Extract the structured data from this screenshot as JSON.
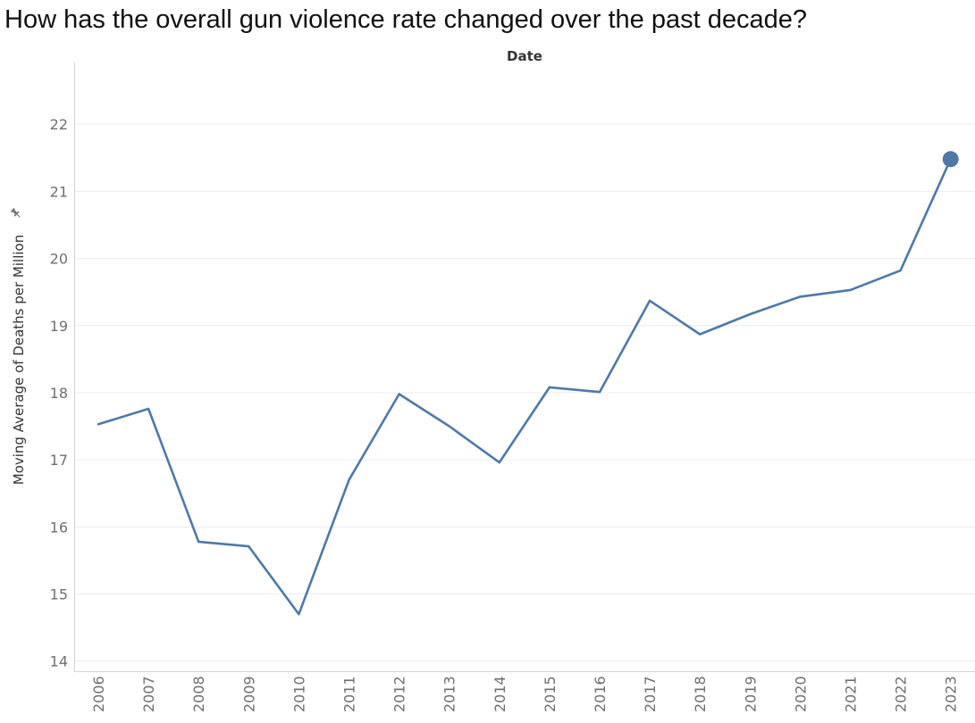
{
  "page": {
    "title": "How has the overall gun violence rate changed over the past decade?"
  },
  "colors": {
    "line": "#4e79a7",
    "grid": "#ececec",
    "axis_line": "#d4d4d4",
    "tick_label": "#6f6f6f",
    "title_text": "#111111"
  },
  "icons": {
    "pin": "pin-icon"
  },
  "chart_data": {
    "type": "line",
    "title": "How has the overall gun violence rate changed over the past decade?",
    "xlabel": "Date",
    "ylabel": "Moving Average of Deaths per Million",
    "x": [
      "2006",
      "2007",
      "2008",
      "2009",
      "2010",
      "2011",
      "2012",
      "2013",
      "2014",
      "2015",
      "2016",
      "2017",
      "2018",
      "2019",
      "2020",
      "2021",
      "2022",
      "2023"
    ],
    "series": [
      {
        "values": [
          17.53,
          17.76,
          15.78,
          15.71,
          14.7,
          16.7,
          17.98,
          17.5,
          16.96,
          18.08,
          18.01,
          19.37,
          18.87,
          19.17,
          19.43,
          19.53,
          19.82,
          21.48
        ]
      }
    ],
    "yticks": [
      14,
      15,
      16,
      17,
      18,
      19,
      20,
      21,
      22
    ],
    "ylim": [
      13.85,
      22.92
    ],
    "highlight_last_point": true,
    "grid": true,
    "legend": "none"
  }
}
